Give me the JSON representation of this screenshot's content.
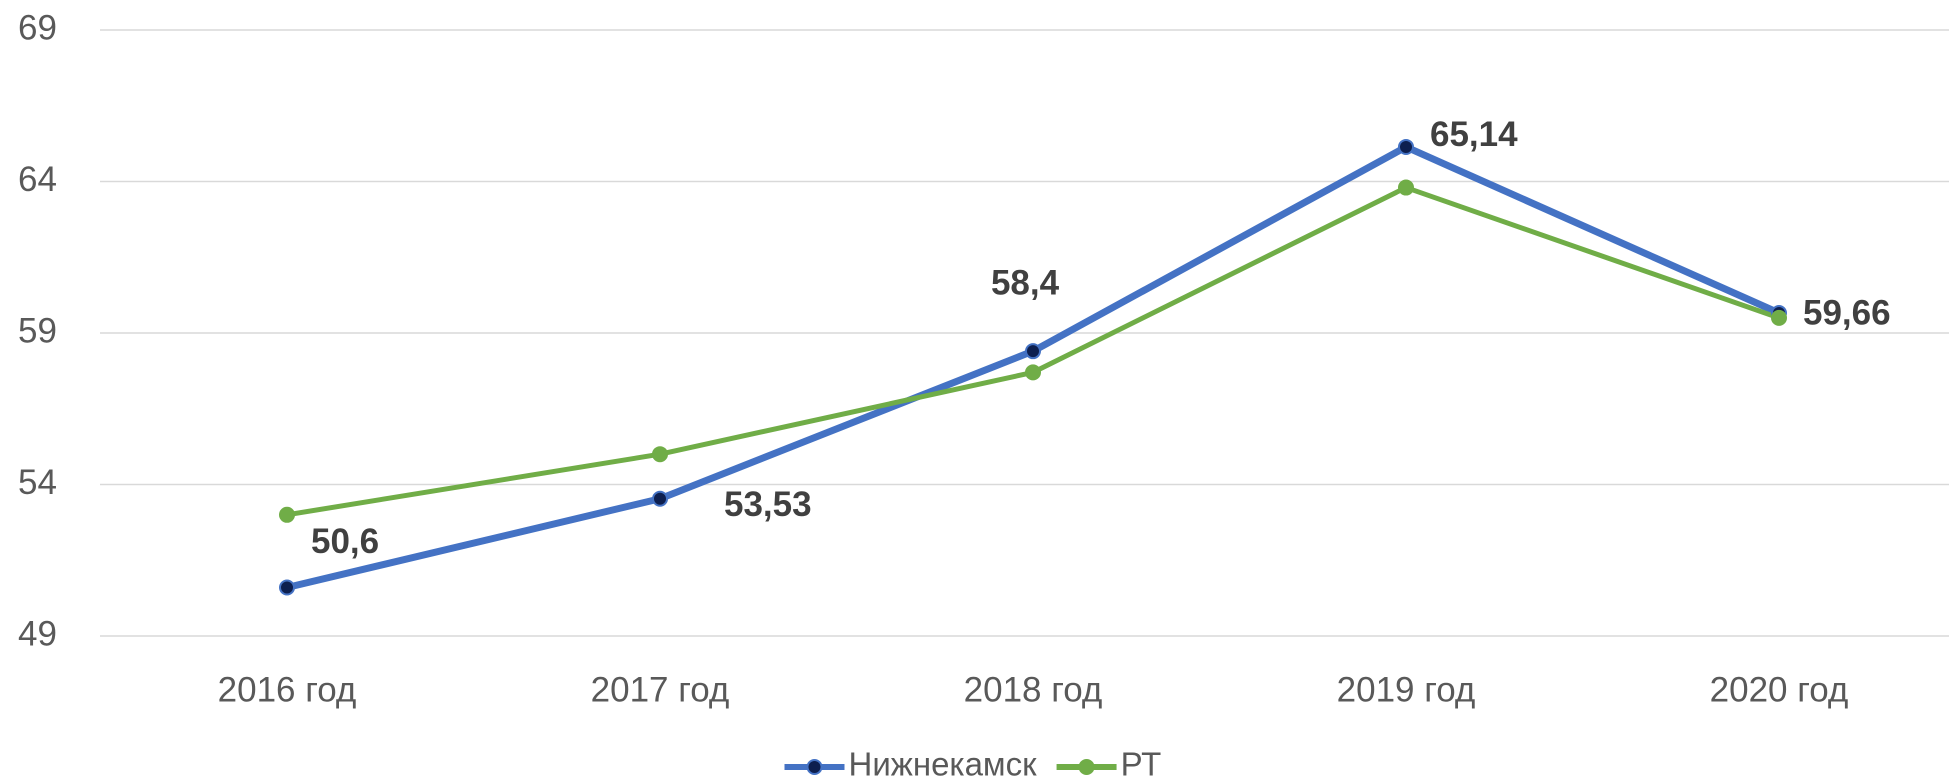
{
  "chart_data": {
    "type": "line",
    "categories": [
      "2016 год",
      "2017 год",
      "2018 год",
      "2019 год",
      "2020 год"
    ],
    "series": [
      {
        "name": "Нижнекамск",
        "color": "#4472c4",
        "marker_color": "#0d1f4f",
        "values": [
          50.6,
          53.53,
          58.4,
          65.14,
          59.66
        ],
        "value_labels": [
          "50,6",
          "53,53",
          "58,4",
          "65,14",
          "59,66"
        ]
      },
      {
        "name": "РТ",
        "color": "#70ad47",
        "marker_color": "#70ad47",
        "values": [
          53.0,
          55.0,
          57.7,
          63.8,
          59.5
        ]
      }
    ],
    "ylim": [
      49,
      69
    ],
    "yticks": [
      49,
      54,
      59,
      64,
      69
    ],
    "grid": true,
    "legend": "bottom"
  }
}
